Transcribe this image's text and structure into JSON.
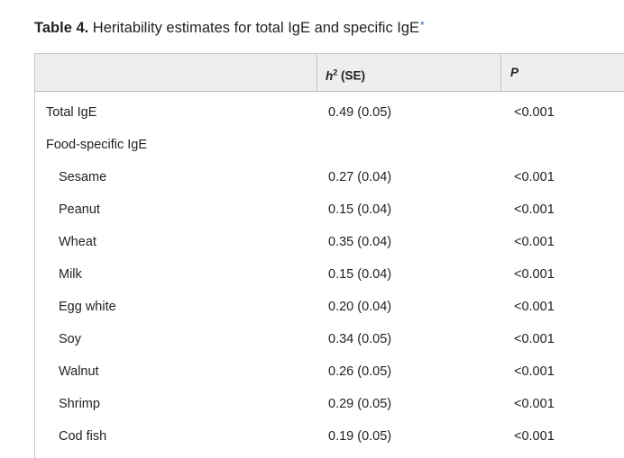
{
  "caption": {
    "label": "Table 4.",
    "text": " Heritability estimates for total IgE and specific IgE",
    "footnote_marker": "*"
  },
  "table": {
    "headers": {
      "col0": "",
      "col1_symbol": "h",
      "col1_sup": "2",
      "col1_text": " (SE)",
      "col2": "P"
    },
    "rows": [
      {
        "label": "Total IgE",
        "estimate": "0.49 (0.05)",
        "p": "<0.001",
        "indent": false
      },
      {
        "label": "Food-specific IgE",
        "estimate": "",
        "p": "",
        "indent": false
      },
      {
        "label": "Sesame",
        "estimate": "0.27 (0.04)",
        "p": "<0.001",
        "indent": true
      },
      {
        "label": "Peanut",
        "estimate": "0.15 (0.04)",
        "p": "<0.001",
        "indent": true
      },
      {
        "label": "Wheat",
        "estimate": "0.35 (0.04)",
        "p": "<0.001",
        "indent": true
      },
      {
        "label": "Milk",
        "estimate": "0.15 (0.04)",
        "p": "<0.001",
        "indent": true
      },
      {
        "label": "Egg white",
        "estimate": "0.20 (0.04)",
        "p": "<0.001",
        "indent": true
      },
      {
        "label": "Soy",
        "estimate": "0.34 (0.05)",
        "p": "<0.001",
        "indent": true
      },
      {
        "label": "Walnut",
        "estimate": "0.26 (0.05)",
        "p": "<0.001",
        "indent": true
      },
      {
        "label": "Shrimp",
        "estimate": "0.29 (0.05)",
        "p": "<0.001",
        "indent": true
      },
      {
        "label": "Cod fish",
        "estimate": "0.19 (0.05)",
        "p": "<0.001",
        "indent": true
      }
    ]
  },
  "colors": {
    "header_bg": "#eeeeee",
    "border": "#c8c8c8",
    "text": "#222222",
    "link": "#2a6ebb"
  }
}
